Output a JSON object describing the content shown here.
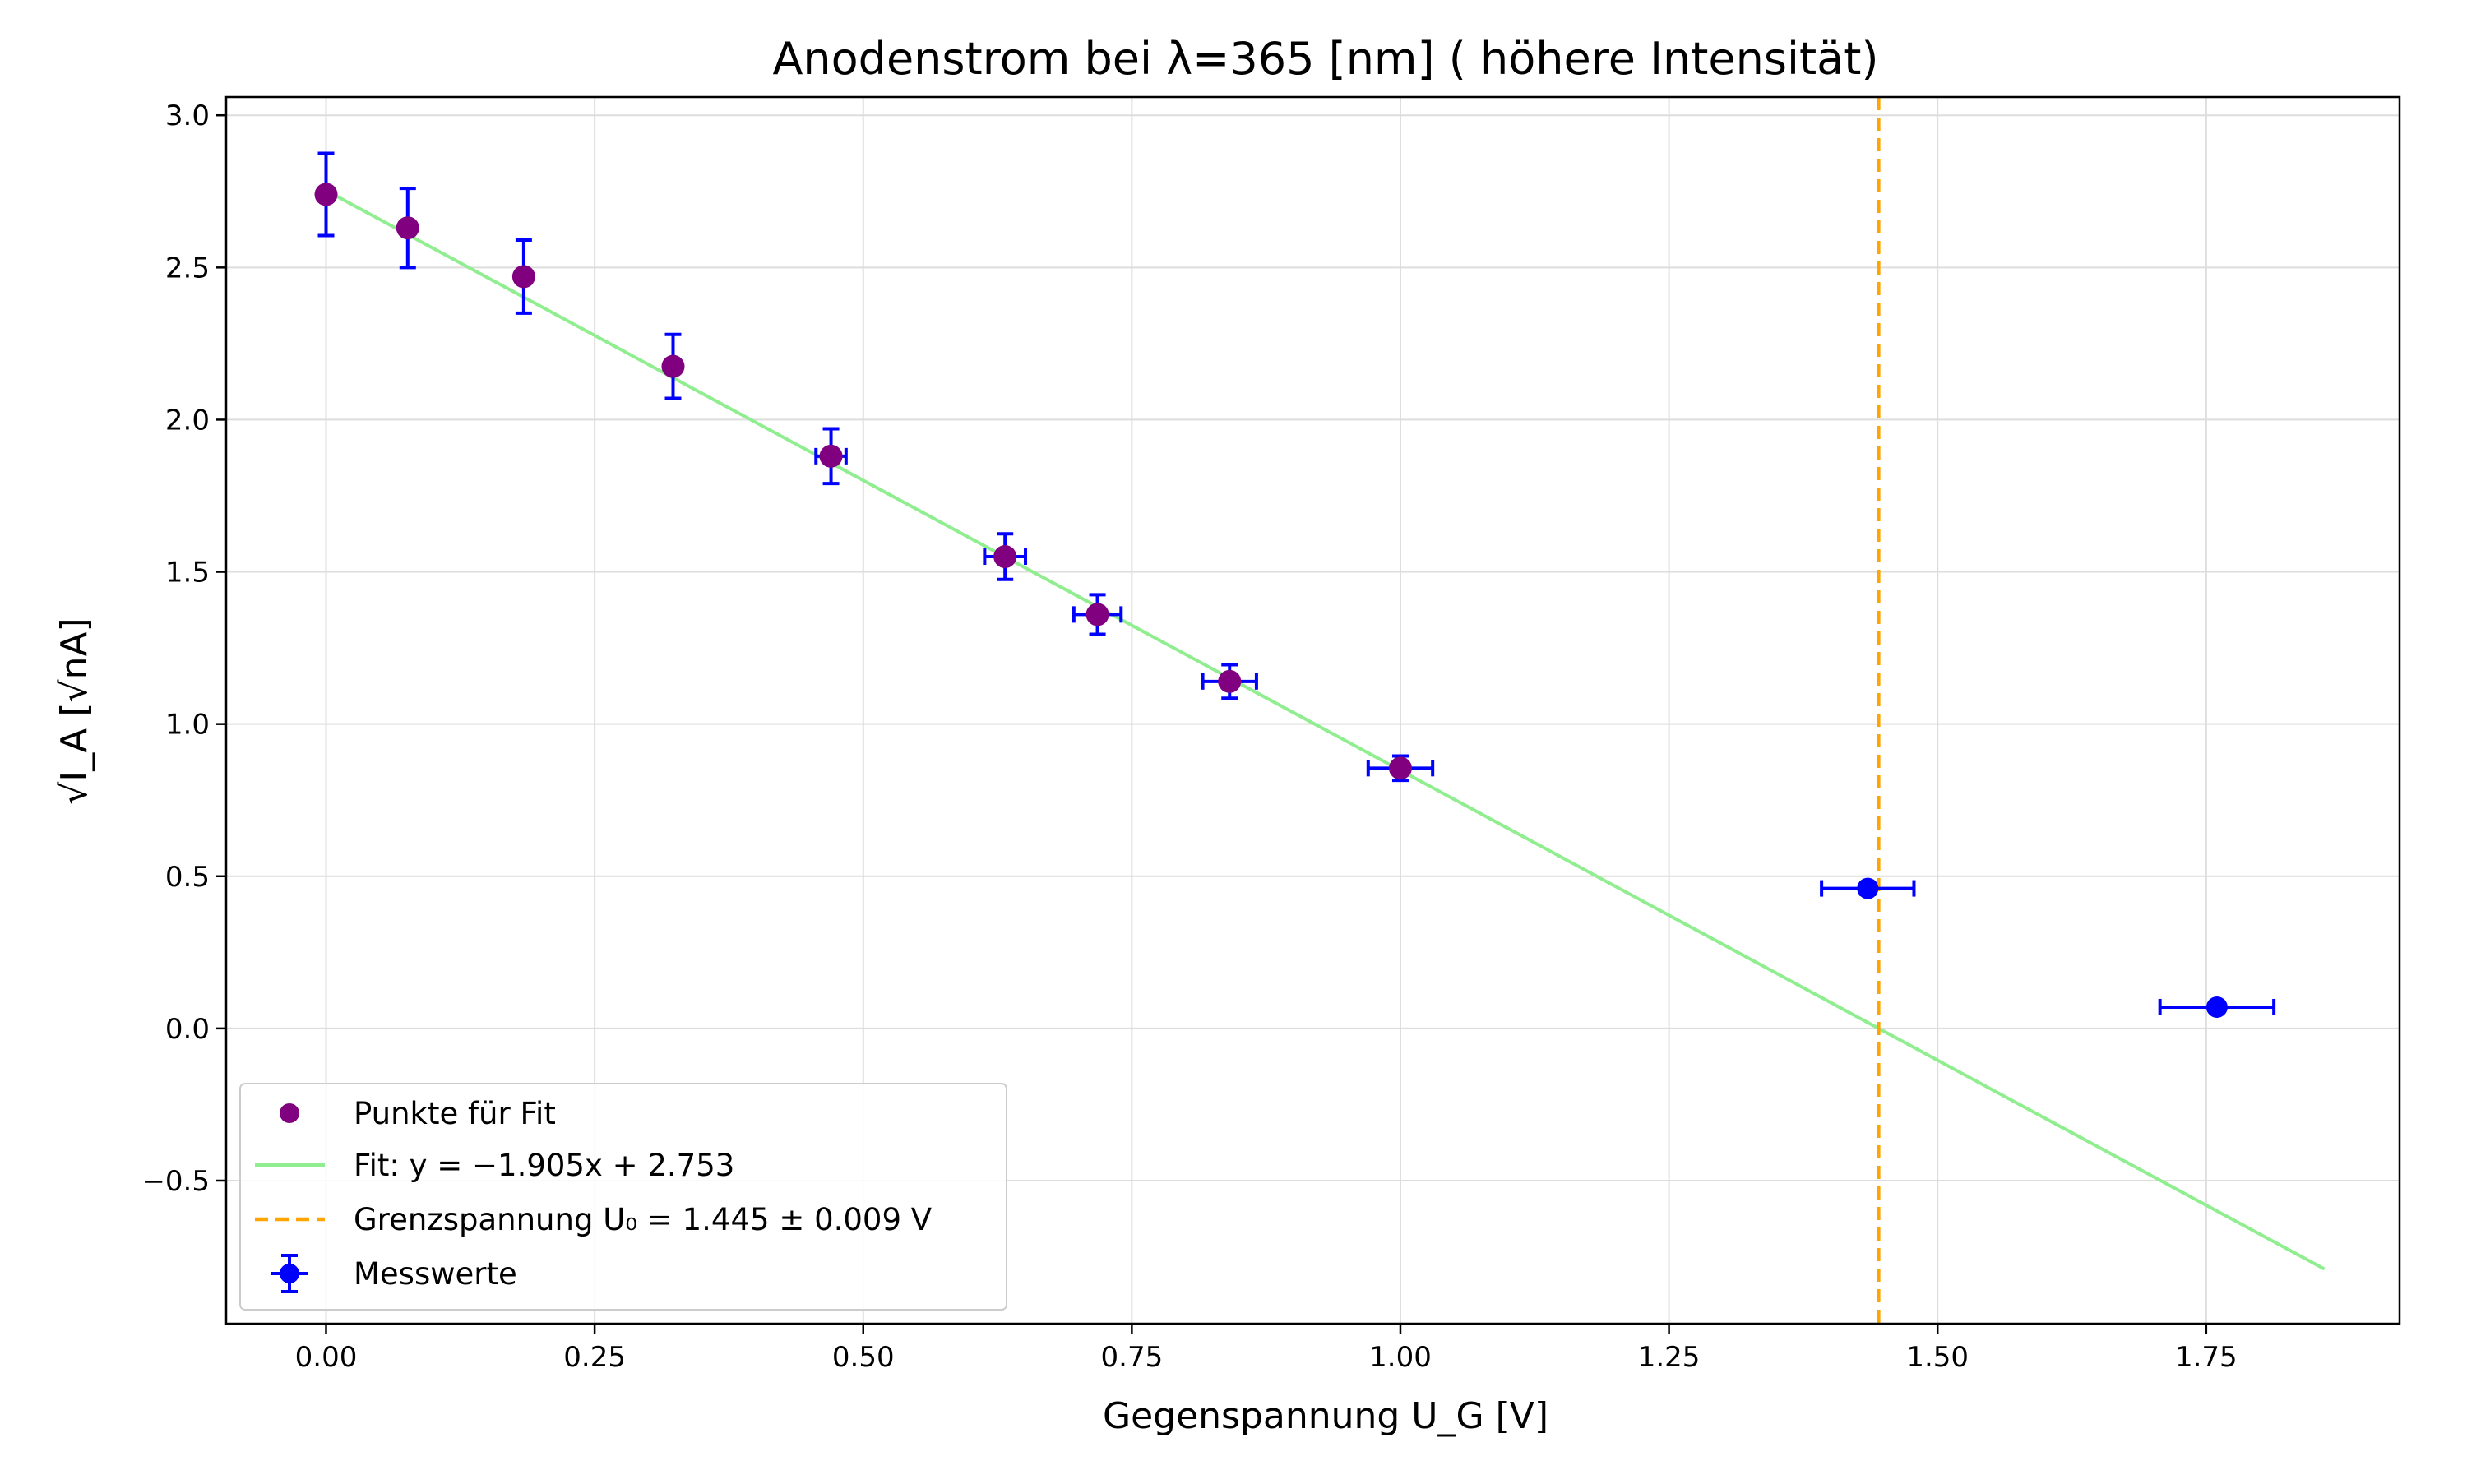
{
  "chart_data": {
    "type": "scatter",
    "title": "Anodenstrom bei λ=365 [nm] ( höhere Intensität)",
    "xlabel": "Gegenspannung U_G [V]",
    "ylabel": "√I_A [√nA]",
    "xlim": [
      -0.093,
      1.93
    ],
    "ylim": [
      -0.97,
      3.06
    ],
    "xticks": [
      0.0,
      0.25,
      0.5,
      0.75,
      1.0,
      1.25,
      1.5,
      1.75
    ],
    "xtick_labels": [
      "0.00",
      "0.25",
      "0.50",
      "0.75",
      "1.00",
      "1.25",
      "1.50",
      "1.75"
    ],
    "yticks": [
      -0.5,
      0.0,
      0.5,
      1.0,
      1.5,
      2.0,
      2.5,
      3.0
    ],
    "ytick_labels": [
      "−0.5",
      "0.0",
      "0.5",
      "1.0",
      "1.5",
      "2.0",
      "2.5",
      "3.0"
    ],
    "grid": true,
    "legend_position": "lower-left",
    "series": [
      {
        "name": "Messwerte",
        "kind": "errorbar",
        "color": "#0000ff",
        "x": [
          0.0,
          0.076,
          0.184,
          0.323,
          0.47,
          0.632,
          0.718,
          0.841,
          1.0,
          1.435,
          1.76
        ],
        "y": [
          2.74,
          2.63,
          2.47,
          2.175,
          1.88,
          1.55,
          1.36,
          1.14,
          0.855,
          0.46,
          0.07
        ],
        "xerr": [
          0.0,
          0.0,
          0.0,
          0.0,
          0.014,
          0.019,
          0.022,
          0.025,
          0.03,
          0.043,
          0.053
        ],
        "yerr": [
          0.135,
          0.13,
          0.12,
          0.105,
          0.09,
          0.075,
          0.065,
          0.055,
          0.04,
          0.02,
          0.01
        ]
      },
      {
        "name": "Punkte für Fit",
        "kind": "scatter",
        "color": "#800080",
        "x": [
          0.0,
          0.076,
          0.184,
          0.323,
          0.47,
          0.632,
          0.718,
          0.841,
          1.0
        ],
        "y": [
          2.74,
          2.63,
          2.47,
          2.175,
          1.88,
          1.55,
          1.36,
          1.14,
          0.855
        ]
      },
      {
        "name": "Fit: y = −1.905x + 2.753",
        "kind": "line",
        "color": "#90ee90",
        "slope": -1.905,
        "intercept": 2.753,
        "x_range": [
          0.0,
          1.86
        ]
      },
      {
        "name": "Grenzspannung U₀ = 1.445 ± 0.009 V",
        "kind": "vline",
        "color": "#ffa500",
        "x": 1.445
      }
    ],
    "legend": [
      {
        "label": "Punkte für Fit",
        "symbol": "dot",
        "color": "#800080"
      },
      {
        "label": "Fit: y = −1.905x + 2.753",
        "symbol": "line",
        "color": "#90ee90"
      },
      {
        "label": "Grenzspannung U₀ = 1.445 ± 0.009 V",
        "symbol": "dashed",
        "color": "#ffa500"
      },
      {
        "label": "Messwerte",
        "symbol": "errorbar",
        "color": "#0000ff"
      }
    ]
  }
}
